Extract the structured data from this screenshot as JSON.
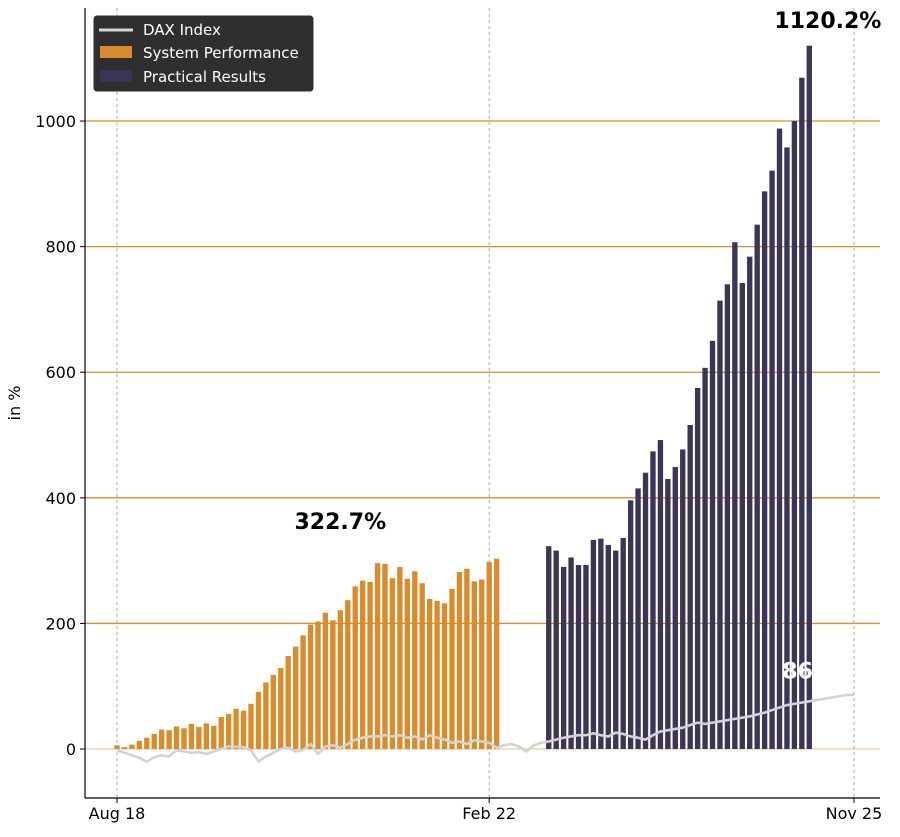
{
  "chart_data": {
    "type": "bar",
    "title": "",
    "ylabel": "in %",
    "xlabel": "",
    "ylim": [
      -78,
      1180
    ],
    "x_range": [
      -4.3,
      102.5
    ],
    "y_ticks": [
      0,
      200,
      400,
      600,
      800,
      1000
    ],
    "x_ticks": [
      {
        "index": 0,
        "label": "Aug 18"
      },
      {
        "index": 50,
        "label": "Feb 22"
      },
      {
        "index": 99,
        "label": "Nov 25"
      }
    ],
    "colors": {
      "system": "#d98c2b",
      "practical": "#3b3556",
      "dax": "#d3d3d3",
      "gridline": "#e08a2c",
      "legend_bg": "#2f2f2f"
    },
    "legend": {
      "position": "top-left",
      "entries": [
        "DAX Index",
        "System Performance",
        "Practical Results"
      ]
    },
    "series": [
      {
        "name": "System Performance",
        "kind": "bar",
        "start_index": 0,
        "values": [
          6,
          3,
          7,
          13,
          18,
          24,
          31,
          30,
          36,
          33,
          40,
          35,
          41,
          37,
          51,
          56,
          64,
          61,
          72,
          91,
          106,
          118,
          129,
          148,
          163,
          181,
          198,
          203,
          217,
          205,
          221,
          237,
          259,
          268,
          266,
          296,
          295,
          272,
          290,
          271,
          283,
          264,
          239,
          236,
          232,
          255,
          282,
          287,
          267,
          270,
          298,
          303
        ]
      },
      {
        "name": "Practical Results",
        "kind": "bar",
        "start_index": 58,
        "values": [
          323,
          316,
          290,
          305,
          293,
          293,
          333,
          335,
          325,
          316,
          336,
          396,
          415,
          440,
          474,
          492,
          430,
          449,
          477,
          516,
          575,
          607,
          650,
          714,
          740,
          807,
          742,
          784,
          835,
          888,
          921,
          988,
          958,
          1000,
          1069,
          1120
        ]
      },
      {
        "name": "DAX Index",
        "kind": "line",
        "x": [
          0,
          2,
          3,
          4,
          5,
          6,
          7,
          8,
          9,
          10,
          11,
          12,
          13,
          15,
          17,
          18,
          19,
          20,
          21,
          22,
          23,
          24,
          25,
          26,
          27,
          28,
          29,
          30,
          31,
          32,
          33,
          34,
          35,
          36,
          37,
          38,
          39,
          40,
          41,
          42,
          43,
          44,
          45,
          46,
          47,
          48,
          49,
          50,
          51,
          52,
          53,
          54,
          55,
          56,
          57,
          58,
          59,
          60,
          61,
          62,
          63,
          64,
          65,
          66,
          67,
          68,
          69,
          70,
          71,
          72,
          73,
          74,
          75,
          76,
          77,
          78,
          79,
          80,
          81,
          82,
          83,
          84,
          85,
          86,
          87,
          88,
          89,
          90,
          91,
          92,
          93,
          94,
          95,
          96,
          97,
          98,
          99
        ],
        "values": [
          -2,
          -10,
          -14,
          -20,
          -13,
          -10,
          -12,
          -2,
          -4,
          -6,
          -5,
          -8,
          -4,
          4,
          3,
          -2,
          -20,
          -12,
          -6,
          0,
          2,
          -4,
          -2,
          8,
          -8,
          4,
          6,
          2,
          8,
          15,
          18,
          20,
          20,
          22,
          20,
          22,
          18,
          20,
          15,
          22,
          18,
          15,
          10,
          12,
          8,
          14,
          12,
          10,
          2,
          6,
          8,
          4,
          -4,
          6,
          10,
          12,
          15,
          18,
          20,
          22,
          22,
          25,
          22,
          20,
          26,
          24,
          20,
          18,
          15,
          22,
          28,
          30,
          32,
          34,
          38,
          42,
          40,
          42,
          44,
          46,
          48,
          50,
          52,
          55,
          58,
          62,
          66,
          70,
          72,
          74,
          76,
          78,
          80,
          82,
          84,
          86,
          86.3
        ]
      }
    ],
    "annotations": [
      {
        "text": "322.7%",
        "x": 30,
        "y": 350,
        "color": "#000000"
      },
      {
        "text": "1120.2%",
        "x": 95.5,
        "y": 1148,
        "color": "#000000"
      },
      {
        "text": "86.3%",
        "x": 94.5,
        "y": 112,
        "color": "#ffffff"
      }
    ]
  }
}
